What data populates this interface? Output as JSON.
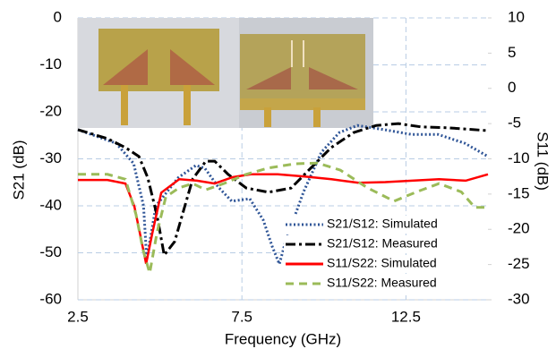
{
  "chart_data": {
    "type": "line",
    "xlabel": "Frequency (GHz)",
    "ylabel": "S21 (dB)",
    "y2label": "S11 (dB)",
    "xlim": [
      2.5,
      15
    ],
    "xticks": [
      2.5,
      7.5,
      12.5
    ],
    "ylim": [
      -60,
      0
    ],
    "yticks": [
      -60,
      -50,
      -40,
      -30,
      -20,
      -10,
      0
    ],
    "y2lim": [
      -30,
      10
    ],
    "y2ticks": [
      -30,
      -25,
      -20,
      -15,
      -10,
      -5,
      0,
      5,
      10
    ],
    "grid": true,
    "legend": "lower right",
    "series": [
      {
        "name": "S21/S12: Simulated",
        "color": "#2f5597",
        "style": "dotted",
        "axis": "y",
        "x": [
          2.5,
          3.67,
          4.2,
          4.5,
          4.6,
          4.88,
          5.56,
          6.1,
          6.37,
          6.78,
          7.19,
          7.74,
          8.15,
          8.42,
          8.64,
          8.83,
          9.38,
          9.92,
          10.47,
          11.02,
          11.84,
          12.66,
          13.48,
          14.3,
          15
        ],
        "values": [
          -23.8,
          -26.7,
          -31,
          -40,
          -51.4,
          -40,
          -34,
          -31.4,
          -32,
          -36,
          -39,
          -38.5,
          -43,
          -48.6,
          -52.4,
          -47.6,
          -37,
          -28.6,
          -24.4,
          -22.9,
          -23.8,
          -24.8,
          -24.8,
          -26.7,
          -29.5
        ]
      },
      {
        "name": "S21/S12: Measured",
        "color": "#000000",
        "style": "dashdot",
        "axis": "y",
        "x": [
          2.5,
          3.4,
          3.95,
          4.36,
          4.63,
          4.91,
          5.13,
          5.45,
          5.72,
          6,
          6.4,
          6.67,
          7.08,
          7.63,
          8.31,
          9,
          9.54,
          10.22,
          10.91,
          11.59,
          12.27,
          12.96,
          13.78,
          15
        ],
        "values": [
          -23.8,
          -25.7,
          -27.6,
          -29.5,
          -34,
          -42,
          -50.5,
          -47.6,
          -41,
          -34.3,
          -30.5,
          -30.5,
          -33.3,
          -36.2,
          -37.1,
          -36.2,
          -32.4,
          -27.6,
          -24.4,
          -22.9,
          -22.5,
          -23.2,
          -23.4,
          -24
        ]
      },
      {
        "name": "S11/S22: Simulated",
        "color": "#ff0000",
        "style": "solid",
        "axis": "y2",
        "x": [
          2.5,
          3.4,
          3.95,
          4.22,
          4.44,
          4.58,
          4.77,
          5.04,
          5.59,
          6.13,
          6.67,
          7.22,
          7.77,
          8.59,
          9.41,
          10.23,
          11.05,
          11.87,
          12.69,
          13.51,
          14.32,
          15
        ],
        "values": [
          -13,
          -13,
          -13.5,
          -16.7,
          -21.7,
          -24.9,
          -20.5,
          -14.8,
          -12.9,
          -13.1,
          -13.5,
          -12.6,
          -12.2,
          -12.2,
          -12.5,
          -12.9,
          -13.4,
          -13.3,
          -13.1,
          -12.9,
          -13.1,
          -12.2
        ]
      },
      {
        "name": "S11/S22: Measured",
        "color": "#9bbb59",
        "style": "dashed",
        "axis": "y2",
        "x": [
          2.5,
          3.4,
          3.95,
          4.27,
          4.49,
          4.69,
          4.91,
          5.18,
          5.59,
          6,
          6.4,
          6.95,
          7.63,
          8.31,
          9.13,
          9.81,
          10.5,
          11.32,
          12.14,
          12.82,
          13.51,
          14.19,
          14.6,
          15
        ],
        "values": [
          -12.2,
          -12.2,
          -12.9,
          -17.9,
          -23,
          -26.2,
          -20.5,
          -15.4,
          -14.1,
          -13.5,
          -14.4,
          -13.5,
          -12.2,
          -11.3,
          -10.7,
          -10.6,
          -11.6,
          -14.1,
          -16,
          -14.7,
          -13.5,
          -14.7,
          -16.9,
          -16.9
        ]
      }
    ]
  }
}
